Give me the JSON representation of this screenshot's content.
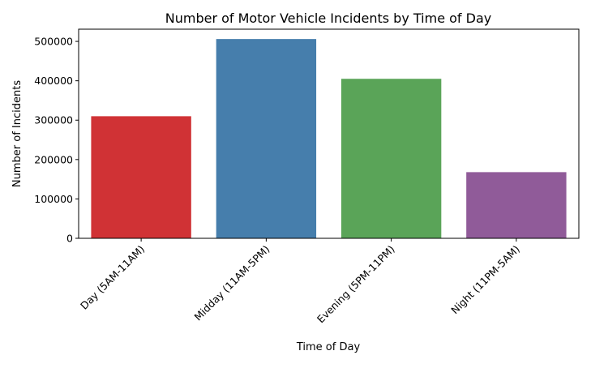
{
  "chart_data": {
    "type": "bar",
    "title": "Number of Motor Vehicle Incidents by Time of Day",
    "xlabel": "Time of Day",
    "ylabel": "Number of Incidents",
    "categories": [
      "Day (5AM-11AM)",
      "Midday (11AM-5PM)",
      "Evening (5PM-11PM)",
      "Night (11PM-5AM)"
    ],
    "values": [
      310000,
      506000,
      405000,
      168000
    ],
    "colors": [
      "#d03235",
      "#467eac",
      "#5aa458",
      "#905b99"
    ],
    "ylim": [
      0,
      531000
    ],
    "yticks": [
      0,
      100000,
      200000,
      300000,
      400000,
      500000
    ],
    "ytick_labels": [
      "0",
      "100000",
      "200000",
      "300000",
      "400000",
      "500000"
    ],
    "grid": false,
    "legend": "none"
  }
}
